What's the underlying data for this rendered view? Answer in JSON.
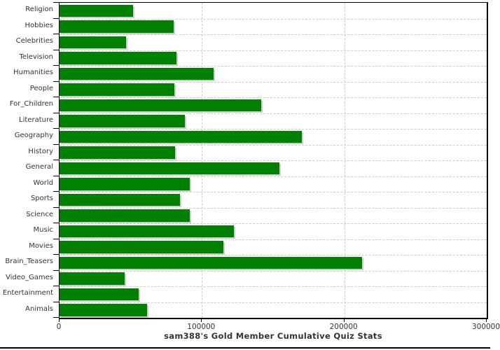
{
  "chart_data": {
    "type": "bar",
    "orientation": "horizontal",
    "title": "sam388's Gold Member Cumulative Quiz Stats",
    "categories": [
      "Religion",
      "Hobbies",
      "Celebrities",
      "Television",
      "Humanities",
      "People",
      "For_Children",
      "Literature",
      "Geography",
      "History",
      "General",
      "World",
      "Sports",
      "Science",
      "Music",
      "Movies",
      "Brain_Teasers",
      "Video_Games",
      "Entertainment",
      "Animals"
    ],
    "values": [
      51500,
      80000,
      46500,
      82000,
      108000,
      80500,
      141500,
      88000,
      170000,
      81000,
      154500,
      91500,
      84500,
      91500,
      122500,
      115000,
      212500,
      45500,
      55500,
      61500
    ],
    "xlabel": "",
    "ylabel": "",
    "xlim": [
      0,
      300000
    ],
    "x_ticks": [
      0,
      100000,
      200000,
      300000
    ],
    "x_tick_labels": [
      "0",
      "100000",
      "200000",
      "300000"
    ],
    "grid": "dashed",
    "legend": "none",
    "colors": {
      "bar": "#008000",
      "bar_shadow": "#cccccc",
      "gridline": "#cccccc",
      "axis": "#000000",
      "text": "#333333",
      "background": "#ffffff"
    }
  }
}
